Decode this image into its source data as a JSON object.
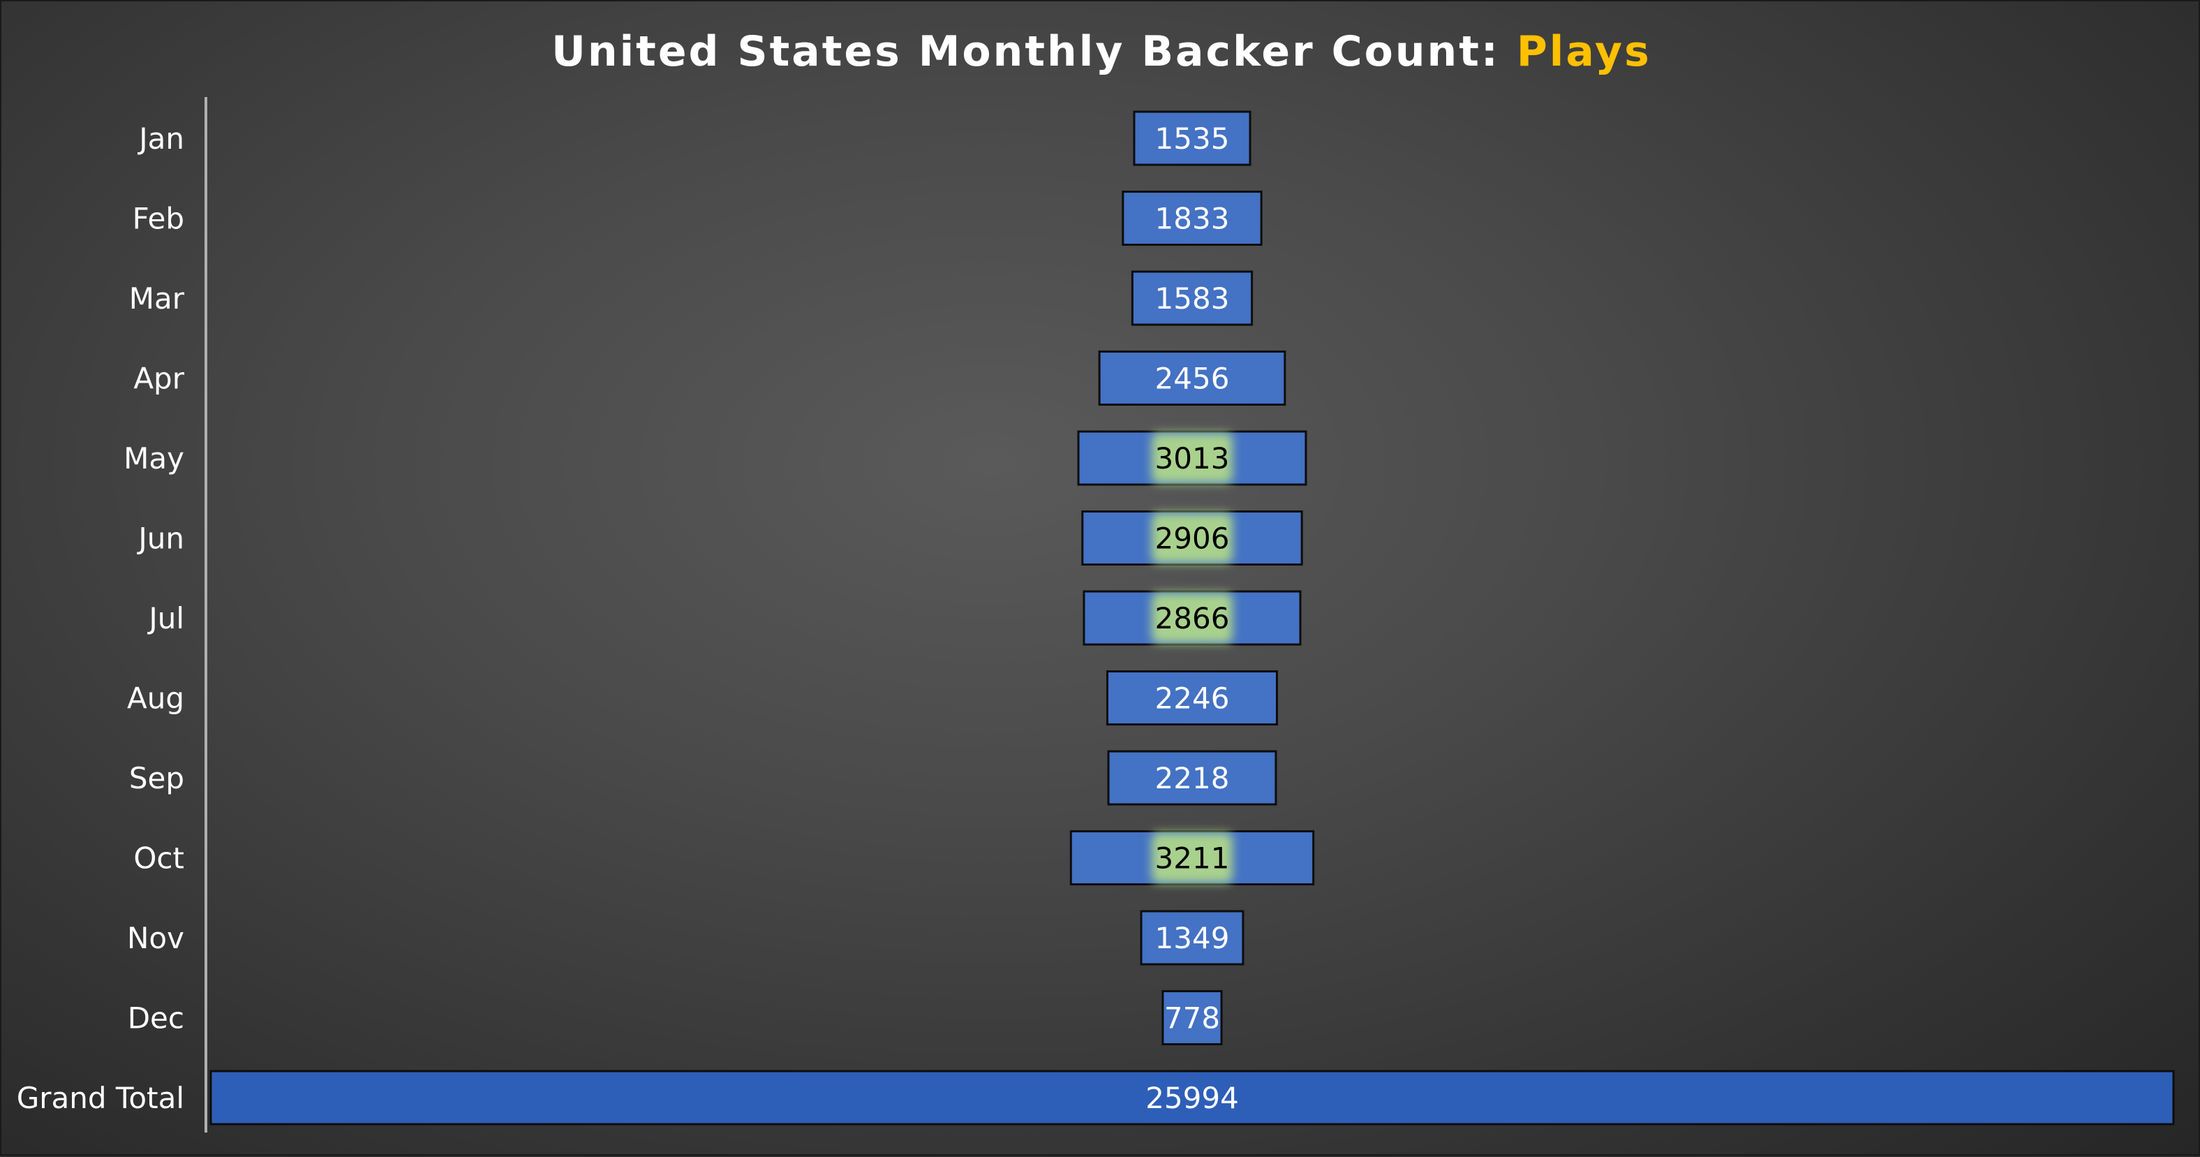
{
  "chart_data": {
    "type": "bar",
    "orientation": "horizontal",
    "layout": "funnel-centered",
    "title": "United States Monthly Backer Count: ",
    "title_highlight": "Plays",
    "categories": [
      "Jan",
      "Feb",
      "Mar",
      "Apr",
      "May",
      "Jun",
      "Jul",
      "Aug",
      "Sep",
      "Oct",
      "Nov",
      "Dec",
      "Grand Total"
    ],
    "values": [
      1535,
      1833,
      1583,
      2456,
      3013,
      2906,
      2866,
      2246,
      2218,
      3211,
      1349,
      778,
      25994
    ],
    "highlighted": [
      false,
      false,
      false,
      false,
      true,
      true,
      true,
      false,
      false,
      true,
      false,
      false,
      false
    ],
    "xlabel": "",
    "ylabel": "",
    "grid": false,
    "legend": "none",
    "colors": {
      "bar": "#4472c4",
      "bar_total": "#2e5fb8",
      "bar_border": "#0d0d0d",
      "highlight_glow": "#a9d18e",
      "label_normal": "#ffffff",
      "label_highlight": "#000000",
      "title": "#ffffff",
      "title_accent": "#ffc000"
    }
  }
}
